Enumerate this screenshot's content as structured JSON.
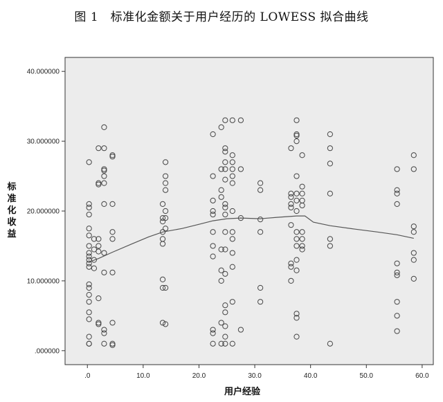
{
  "title": "图 1　标准化金额关于用户经历的 LOWESS 拟合曲线",
  "chart_data": {
    "type": "scatter",
    "title": "图 1　标准化金额关于用户经历的 LOWESS 拟合曲线",
    "xlabel": "用户经验",
    "ylabel": "标准化收益",
    "xlim": [
      -4,
      62
    ],
    "ylim": [
      -2,
      42
    ],
    "x_ticks": [
      0,
      10,
      20,
      30,
      40,
      50,
      60
    ],
    "x_tick_labels": [
      ".0",
      "10.0",
      "20.0",
      "30.0",
      "40.0",
      "50.0",
      "60.0"
    ],
    "y_ticks": [
      0,
      10,
      20,
      30,
      40
    ],
    "y_tick_labels": [
      ".000000",
      "10.000000",
      "20.000000",
      "30.000000",
      "40.000000"
    ],
    "grid": false,
    "legend": "none",
    "background_color": "#ececec",
    "marker_color": "#444444",
    "line_color": "#555555",
    "points": [
      [
        0.3,
        27
      ],
      [
        0.3,
        21
      ],
      [
        0.3,
        20.5
      ],
      [
        0.3,
        19.5
      ],
      [
        0.3,
        17.5
      ],
      [
        0.3,
        16.5
      ],
      [
        0.3,
        15
      ],
      [
        0.3,
        14
      ],
      [
        0.3,
        13.5
      ],
      [
        0.3,
        13
      ],
      [
        0.3,
        12.5
      ],
      [
        0.3,
        12
      ],
      [
        0.3,
        9.5
      ],
      [
        0.3,
        9
      ],
      [
        0.3,
        8
      ],
      [
        0.3,
        7
      ],
      [
        0.3,
        5.5
      ],
      [
        0.3,
        4.5
      ],
      [
        0.3,
        2
      ],
      [
        0.3,
        1
      ],
      [
        0.3,
        1
      ],
      [
        1.2,
        16
      ],
      [
        1.2,
        14.5
      ],
      [
        1.2,
        13
      ],
      [
        1.2,
        11.8
      ],
      [
        2,
        29
      ],
      [
        2,
        24
      ],
      [
        2,
        23.8
      ],
      [
        2,
        16
      ],
      [
        2,
        15
      ],
      [
        2,
        14.2
      ],
      [
        2,
        7.5
      ],
      [
        2,
        4
      ],
      [
        2,
        3.8
      ],
      [
        3,
        32
      ],
      [
        3,
        29
      ],
      [
        3,
        26
      ],
      [
        3,
        25.8
      ],
      [
        3,
        25
      ],
      [
        3,
        24
      ],
      [
        3,
        21
      ],
      [
        3,
        14
      ],
      [
        3,
        11.2
      ],
      [
        3,
        3
      ],
      [
        3,
        2.5
      ],
      [
        3,
        1
      ],
      [
        4.5,
        28
      ],
      [
        4.5,
        27.8
      ],
      [
        4.5,
        21
      ],
      [
        4.5,
        17
      ],
      [
        4.5,
        16
      ],
      [
        4.5,
        11.2
      ],
      [
        4.5,
        4
      ],
      [
        4.5,
        1
      ],
      [
        4.5,
        0.8
      ],
      [
        13.5,
        21
      ],
      [
        13.5,
        19
      ],
      [
        13.5,
        18.5
      ],
      [
        13.5,
        17
      ],
      [
        13.5,
        16
      ],
      [
        13.5,
        15.3
      ],
      [
        13.5,
        10.2
      ],
      [
        13.5,
        9
      ],
      [
        13.5,
        4
      ],
      [
        14,
        27
      ],
      [
        14,
        25
      ],
      [
        14,
        24
      ],
      [
        14,
        23
      ],
      [
        14,
        20
      ],
      [
        14,
        19
      ],
      [
        14,
        17.5
      ],
      [
        14,
        9
      ],
      [
        14,
        3.8
      ],
      [
        22.5,
        31
      ],
      [
        22.5,
        25
      ],
      [
        22.5,
        21.5
      ],
      [
        22.5,
        20
      ],
      [
        22.5,
        19.5
      ],
      [
        22.5,
        17
      ],
      [
        22.5,
        15
      ],
      [
        22.5,
        13.5
      ],
      [
        22.5,
        3
      ],
      [
        22.5,
        2.5
      ],
      [
        22.5,
        1
      ],
      [
        24,
        32
      ],
      [
        24,
        26
      ],
      [
        24,
        23
      ],
      [
        24,
        22
      ],
      [
        24,
        14.5
      ],
      [
        24,
        11.5
      ],
      [
        24,
        10
      ],
      [
        24,
        4
      ],
      [
        24,
        1
      ],
      [
        24.7,
        33
      ],
      [
        24.7,
        29
      ],
      [
        24.7,
        28.5
      ],
      [
        24.7,
        27
      ],
      [
        24.7,
        26
      ],
      [
        24.7,
        24.5
      ],
      [
        24.7,
        21
      ],
      [
        24.7,
        20.5
      ],
      [
        24.7,
        19.5
      ],
      [
        24.7,
        17
      ],
      [
        24.7,
        14.5
      ],
      [
        24.7,
        11
      ],
      [
        24.7,
        6.5
      ],
      [
        24.7,
        5.5
      ],
      [
        24.7,
        3.5
      ],
      [
        24.7,
        2
      ],
      [
        24.7,
        1
      ],
      [
        26,
        33
      ],
      [
        26,
        28
      ],
      [
        26,
        27
      ],
      [
        26,
        26
      ],
      [
        26,
        25
      ],
      [
        26,
        24
      ],
      [
        26,
        20
      ],
      [
        26,
        17
      ],
      [
        26,
        16
      ],
      [
        26,
        14
      ],
      [
        26,
        12
      ],
      [
        26,
        7
      ],
      [
        26,
        1
      ],
      [
        27.5,
        33
      ],
      [
        27.5,
        26
      ],
      [
        27.5,
        19
      ],
      [
        27.5,
        3
      ],
      [
        31,
        24
      ],
      [
        31,
        23
      ],
      [
        31,
        18.8
      ],
      [
        31,
        17
      ],
      [
        31,
        9
      ],
      [
        31,
        7
      ],
      [
        36.5,
        29
      ],
      [
        36.5,
        22.5
      ],
      [
        36.5,
        22
      ],
      [
        36.5,
        21
      ],
      [
        36.5,
        20.5
      ],
      [
        36.5,
        18
      ],
      [
        36.5,
        12.5
      ],
      [
        36.5,
        12
      ],
      [
        36.5,
        10
      ],
      [
        37.5,
        33
      ],
      [
        37.5,
        31
      ],
      [
        37.5,
        30.8
      ],
      [
        37.5,
        30
      ],
      [
        37.5,
        25
      ],
      [
        37.5,
        22.5
      ],
      [
        37.5,
        21.5
      ],
      [
        37.5,
        20
      ],
      [
        37.5,
        17
      ],
      [
        37.5,
        16
      ],
      [
        37.5,
        15
      ],
      [
        37.5,
        13
      ],
      [
        37.5,
        11.5
      ],
      [
        37.5,
        5.3
      ],
      [
        37.5,
        4.7
      ],
      [
        37.5,
        2
      ],
      [
        38.5,
        28
      ],
      [
        38.5,
        23.5
      ],
      [
        38.5,
        22.5
      ],
      [
        38.5,
        21.5
      ],
      [
        38.5,
        20.8
      ],
      [
        38.5,
        17
      ],
      [
        38.5,
        16
      ],
      [
        38.5,
        15
      ],
      [
        38.5,
        14.5
      ],
      [
        43.5,
        31
      ],
      [
        43.5,
        29
      ],
      [
        43.5,
        26.8
      ],
      [
        43.5,
        22.5
      ],
      [
        43.5,
        16
      ],
      [
        43.5,
        15
      ],
      [
        43.5,
        1
      ],
      [
        55.5,
        26
      ],
      [
        55.5,
        23
      ],
      [
        55.5,
        22.5
      ],
      [
        55.5,
        21
      ],
      [
        55.5,
        12.5
      ],
      [
        55.5,
        11.2
      ],
      [
        55.5,
        10.8
      ],
      [
        55.5,
        7
      ],
      [
        55.5,
        5
      ],
      [
        55.5,
        2.8
      ],
      [
        58.5,
        28
      ],
      [
        58.5,
        26
      ],
      [
        58.5,
        17.8
      ],
      [
        58.5,
        17
      ],
      [
        58.5,
        14
      ],
      [
        58.5,
        13
      ],
      [
        58.5,
        10.3
      ]
    ],
    "lowess": [
      [
        0.3,
        12.7
      ],
      [
        2,
        13.2
      ],
      [
        4.5,
        14.1
      ],
      [
        8,
        15.3
      ],
      [
        11,
        16.3
      ],
      [
        13.5,
        17.0
      ],
      [
        17,
        17.5
      ],
      [
        20,
        18.1
      ],
      [
        22.5,
        18.6
      ],
      [
        25,
        18.9
      ],
      [
        27.5,
        19.0
      ],
      [
        31,
        18.9
      ],
      [
        34,
        19.1
      ],
      [
        37.5,
        19.3
      ],
      [
        39,
        19.3
      ],
      [
        40.5,
        18.4
      ],
      [
        43.5,
        17.9
      ],
      [
        48,
        17.4
      ],
      [
        52,
        17.0
      ],
      [
        55.5,
        16.6
      ],
      [
        58.5,
        16.1
      ]
    ]
  }
}
